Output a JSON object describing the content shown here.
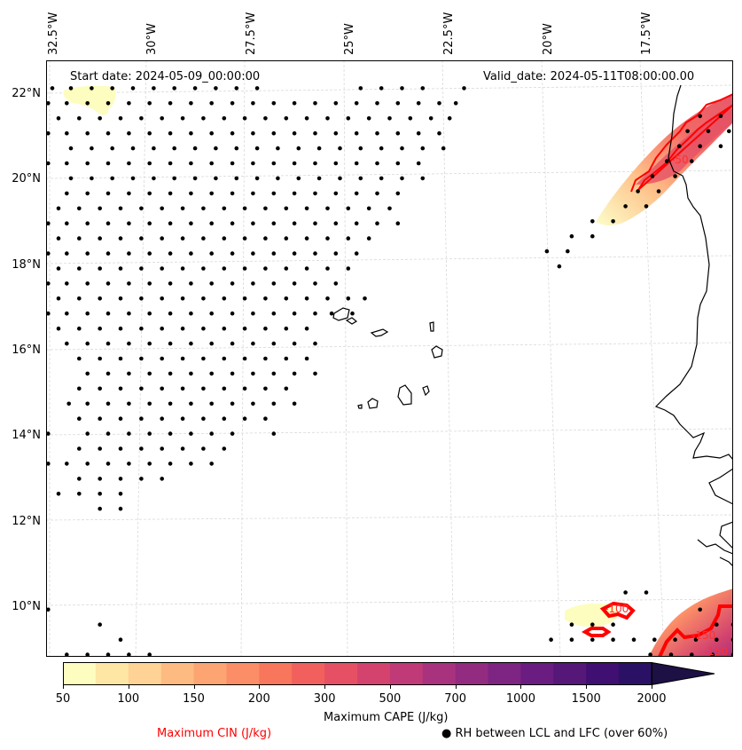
{
  "figure": {
    "start_date_label": "Start date: 2024-05-09_00:00:00",
    "valid_date_label": "Valid_date: 2024-05-11T08:00:00.00"
  },
  "axes": {
    "lon_ticks": [
      "32.5°W",
      "30°W",
      "27.5°W",
      "25°W",
      "22.5°W",
      "20°W",
      "17.5°W"
    ],
    "lat_ticks": [
      "22°N",
      "20°N",
      "18°N",
      "16°N",
      "14°N",
      "12°N",
      "10°N"
    ],
    "lon_range": [
      -32.6,
      -16.0
    ],
    "lat_range": [
      8.9,
      22.8
    ],
    "gridlines": true
  },
  "colorbar": {
    "label": "Maximum CAPE (J/kg)",
    "tick_labels": [
      "50",
      "100",
      "150",
      "200",
      "300",
      "500",
      "700",
      "1000",
      "1500",
      "2000"
    ],
    "levels": [
      50,
      75,
      100,
      125,
      150,
      175,
      200,
      250,
      300,
      400,
      500,
      600,
      700,
      850,
      1000,
      1250,
      1500,
      1750,
      2000,
      2500
    ],
    "colors": [
      "#fcfdbf",
      "#fee6a5",
      "#fed395",
      "#febb81",
      "#fca572",
      "#fb8d67",
      "#f8765c",
      "#f1605d",
      "#e55064",
      "#d3436e",
      "#bf3a77",
      "#a8327d",
      "#932b80",
      "#7e2482",
      "#6a1c81",
      "#551778",
      "#3f0f72",
      "#2b1165",
      "#1c1044"
    ],
    "extend": "max",
    "extend_color": "#1c1044"
  },
  "legend": {
    "cin_label": "Maximum CIN (J/kg)",
    "cin_color": "#ff0000",
    "rh_label": "RH between LCL and LFC (over 60%)",
    "rh_marker": "●"
  },
  "contour_labels": [
    {
      "text": "-50",
      "lon": -17.2,
      "lat": 20.4
    },
    {
      "text": "-100",
      "lon": -19.3,
      "lat": 9.8
    },
    {
      "text": "-150",
      "lon": -16.8,
      "lat": 9.4
    },
    {
      "text": "-150",
      "lon": -16.5,
      "lat": 9.05
    }
  ],
  "rh_dots_rows": [
    {
      "lat": 22.15,
      "lons": [
        -32.45,
        -32.0,
        -31.5,
        -31.0,
        -30.5,
        -30.0,
        -29.5,
        -29.0,
        -28.5,
        -28.0,
        -27.5,
        -25.0,
        -24.5,
        -24.0,
        -23.5,
        -22.5
      ]
    },
    {
      "lat": 21.8,
      "lons": [
        -32.55,
        -32.1,
        -31.6,
        -31.1,
        -30.6,
        -30.1,
        -29.6,
        -29.1,
        -28.6,
        -28.1,
        -27.6,
        -27.1,
        -26.6,
        -26.1,
        -25.6,
        -25.1,
        -24.6,
        -24.1,
        -23.6,
        -23.1,
        -22.7
      ]
    },
    {
      "lat": 21.45,
      "lons": [
        -32.3,
        -31.8,
        -31.3,
        -30.8,
        -30.3,
        -29.8,
        -29.3,
        -28.8,
        -28.3,
        -27.8,
        -27.3,
        -26.8,
        -26.3,
        -25.8,
        -25.3,
        -24.8,
        -24.3,
        -23.8,
        -23.3,
        -22.85
      ]
    },
    {
      "lat": 21.1,
      "lons": [
        -32.55,
        -32.1,
        -31.6,
        -31.1,
        -30.6,
        -30.1,
        -29.6,
        -29.1,
        -28.6,
        -28.1,
        -27.6,
        -27.1,
        -26.6,
        -26.1,
        -25.6,
        -25.1,
        -24.6,
        -24.1,
        -23.6,
        -23.1
      ]
    },
    {
      "lat": 20.75,
      "lons": [
        -32.0,
        -31.5,
        -31.0,
        -30.5,
        -30.0,
        -29.5,
        -29.0,
        -28.5,
        -28.0,
        -27.5,
        -27.0,
        -26.5,
        -26.0,
        -25.5,
        -25.0,
        -24.5,
        -24.0,
        -23.5,
        -23.0
      ]
    },
    {
      "lat": 20.4,
      "lons": [
        -32.55,
        -32.1,
        -31.6,
        -31.1,
        -30.6,
        -30.1,
        -29.6,
        -29.1,
        -28.6,
        -28.1,
        -27.6,
        -27.1,
        -26.6,
        -26.1,
        -25.6,
        -25.1,
        -24.6,
        -24.1,
        -23.6
      ]
    },
    {
      "lat": 20.05,
      "lons": [
        -32.0,
        -31.5,
        -31.0,
        -30.5,
        -30.0,
        -29.5,
        -29.0,
        -28.5,
        -28.0,
        -27.5,
        -27.0,
        -26.5,
        -26.0,
        -25.5,
        -25.0,
        -24.5,
        -24.0,
        -23.5
      ]
    },
    {
      "lat": 19.7,
      "lons": [
        -32.1,
        -31.6,
        -31.1,
        -30.6,
        -30.1,
        -29.6,
        -29.1,
        -28.6,
        -28.1,
        -27.6,
        -27.1,
        -26.6,
        -26.1,
        -25.6,
        -25.1,
        -24.6,
        -24.1
      ]
    },
    {
      "lat": 19.35,
      "lons": [
        -32.3,
        -31.8,
        -31.3,
        -30.8,
        -30.3,
        -29.8,
        -29.3,
        -28.8,
        -28.3,
        -27.8,
        -27.3,
        -26.8,
        -26.3,
        -25.8,
        -25.3,
        -24.8,
        -24.3
      ]
    },
    {
      "lat": 19.0,
      "lons": [
        -32.55,
        -32.1,
        -31.6,
        -31.1,
        -30.6,
        -30.1,
        -29.6,
        -29.1,
        -28.6,
        -28.1,
        -27.6,
        -27.1,
        -26.6,
        -26.1,
        -25.6,
        -25.1,
        -24.6,
        -24.1
      ]
    },
    {
      "lat": 18.65,
      "lons": [
        -32.3,
        -31.8,
        -31.3,
        -30.8,
        -30.3,
        -29.8,
        -29.3,
        -28.8,
        -28.3,
        -27.8,
        -27.3,
        -26.8,
        -26.3,
        -25.8,
        -25.3,
        -24.8
      ]
    },
    {
      "lat": 18.3,
      "lons": [
        -32.55,
        -32.1,
        -31.6,
        -31.1,
        -30.6,
        -30.1,
        -29.6,
        -29.1,
        -28.6,
        -28.1,
        -27.6,
        -27.1,
        -26.6,
        -26.1,
        -25.6,
        -25.1
      ]
    },
    {
      "lat": 17.95,
      "lons": [
        -32.3,
        -31.8,
        -31.3,
        -30.8,
        -30.3,
        -29.8,
        -29.3,
        -28.8,
        -28.3,
        -27.8,
        -27.3,
        -26.8,
        -26.3,
        -25.8,
        -25.3
      ]
    },
    {
      "lat": 17.6,
      "lons": [
        -32.55,
        -32.1,
        -31.6,
        -31.1,
        -30.6,
        -30.1,
        -29.6,
        -29.1,
        -28.6,
        -28.1,
        -27.6,
        -27.1,
        -26.6,
        -26.1,
        -25.6
      ]
    },
    {
      "lat": 17.25,
      "lons": [
        -32.3,
        -31.8,
        -31.3,
        -30.8,
        -30.3,
        -29.8,
        -29.3,
        -28.8,
        -28.3,
        -27.8,
        -27.3,
        -26.8,
        -26.3,
        -25.8,
        -25.3,
        -24.9
      ]
    },
    {
      "lat": 16.9,
      "lons": [
        -32.55,
        -32.1,
        -31.6,
        -31.1,
        -30.6,
        -30.1,
        -29.6,
        -29.1,
        -28.6,
        -28.1,
        -27.6,
        -27.1,
        -26.6,
        -26.1,
        -25.7,
        -25.2
      ]
    },
    {
      "lat": 16.55,
      "lons": [
        -32.3,
        -31.8,
        -31.3,
        -30.8,
        -30.3,
        -29.8,
        -29.3,
        -28.8,
        -28.3,
        -27.8,
        -27.3,
        -26.8,
        -26.3
      ]
    },
    {
      "lat": 16.2,
      "lons": [
        -32.1,
        -31.6,
        -31.1,
        -30.6,
        -30.1,
        -29.6,
        -29.1,
        -28.6,
        -28.1,
        -27.6,
        -27.1,
        -26.6,
        -26.1
      ]
    },
    {
      "lat": 15.85,
      "lons": [
        -31.8,
        -31.3,
        -30.8,
        -30.3,
        -29.8,
        -29.3,
        -28.8,
        -28.3,
        -27.8,
        -27.3,
        -26.8,
        -26.3
      ]
    },
    {
      "lat": 15.5,
      "lons": [
        -31.6,
        -31.1,
        -30.6,
        -30.1,
        -29.6,
        -29.1,
        -28.6,
        -28.1,
        -27.6,
        -27.1,
        -26.6,
        -26.1
      ]
    },
    {
      "lat": 15.15,
      "lons": [
        -31.8,
        -31.3,
        -30.8,
        -30.3,
        -29.8,
        -29.3,
        -28.8,
        -28.3,
        -27.8,
        -27.3,
        -26.8
      ]
    },
    {
      "lat": 14.8,
      "lons": [
        -32.05,
        -31.6,
        -31.1,
        -30.6,
        -30.1,
        -29.6,
        -29.1,
        -28.6,
        -28.1,
        -27.6,
        -27.1,
        -26.6
      ]
    },
    {
      "lat": 14.45,
      "lons": [
        -31.8,
        -31.3,
        -30.8,
        -30.3,
        -29.8,
        -29.3,
        -28.8,
        -28.3,
        -27.8,
        -27.3
      ]
    },
    {
      "lat": 14.1,
      "lons": [
        -32.55,
        -31.6,
        -31.1,
        -30.6,
        -30.1,
        -29.6,
        -29.1,
        -28.6,
        -28.1,
        -27.1
      ]
    },
    {
      "lat": 13.75,
      "lons": [
        -31.8,
        -31.3,
        -30.8,
        -30.3,
        -29.8,
        -29.3,
        -28.8,
        -28.3
      ]
    },
    {
      "lat": 13.4,
      "lons": [
        -32.55,
        -32.1,
        -31.6,
        -31.1,
        -30.6,
        -30.1,
        -29.6,
        -29.1,
        -28.6
      ]
    },
    {
      "lat": 13.05,
      "lons": [
        -31.8,
        -31.3,
        -30.8,
        -30.3,
        -29.8
      ]
    },
    {
      "lat": 12.7,
      "lons": [
        -32.3,
        -31.8,
        -31.3,
        -30.8
      ]
    },
    {
      "lat": 12.35,
      "lons": [
        -31.3,
        -30.8
      ]
    },
    {
      "lat": 10.0,
      "lons": [
        -32.55
      ]
    },
    {
      "lat": 9.65,
      "lons": [
        -31.3
      ]
    },
    {
      "lat": 9.3,
      "lons": [
        -30.8
      ]
    },
    {
      "lat": 8.95,
      "lons": [
        -32.1,
        -31.6,
        -31.1,
        -30.6,
        -30.1
      ]
    },
    {
      "lat": 19.05,
      "lons": [
        -19.4,
        -18.9
      ]
    },
    {
      "lat": 18.7,
      "lons": [
        -19.9,
        -19.4
      ]
    },
    {
      "lat": 18.35,
      "lons": [
        -20.5,
        -20.0
      ]
    },
    {
      "lat": 18.0,
      "lons": [
        -20.2
      ]
    },
    {
      "lat": 19.4,
      "lons": [
        -18.6,
        -18.1
      ]
    },
    {
      "lat": 19.75,
      "lons": [
        -18.3,
        -17.8
      ]
    },
    {
      "lat": 20.1,
      "lons": [
        -17.95,
        -17.4
      ]
    },
    {
      "lat": 20.45,
      "lons": [
        -17.6,
        -17.0
      ]
    },
    {
      "lat": 20.8,
      "lons": [
        -17.3,
        -16.8,
        -16.3
      ]
    },
    {
      "lat": 21.15,
      "lons": [
        -17.1,
        -16.6,
        -16.1
      ]
    },
    {
      "lat": 21.5,
      "lons": [
        -16.8,
        -16.3
      ]
    },
    {
      "lat": 10.4,
      "lons": [
        -18.6,
        -18.1
      ]
    },
    {
      "lat": 10.0,
      "lons": [
        -16.8
      ]
    },
    {
      "lat": 9.65,
      "lons": [
        -19.9,
        -19.4,
        -18.9,
        -16.4,
        -16.0
      ]
    },
    {
      "lat": 9.3,
      "lons": [
        -20.4,
        -19.9,
        -19.4,
        -18.9,
        -18.4,
        -17.9,
        -17.4,
        -16.9,
        -16.4,
        -16.0
      ]
    },
    {
      "lat": 8.95,
      "lons": [
        -18.0,
        -17.5,
        -17.0,
        -16.5,
        -16.0
      ]
    }
  ]
}
